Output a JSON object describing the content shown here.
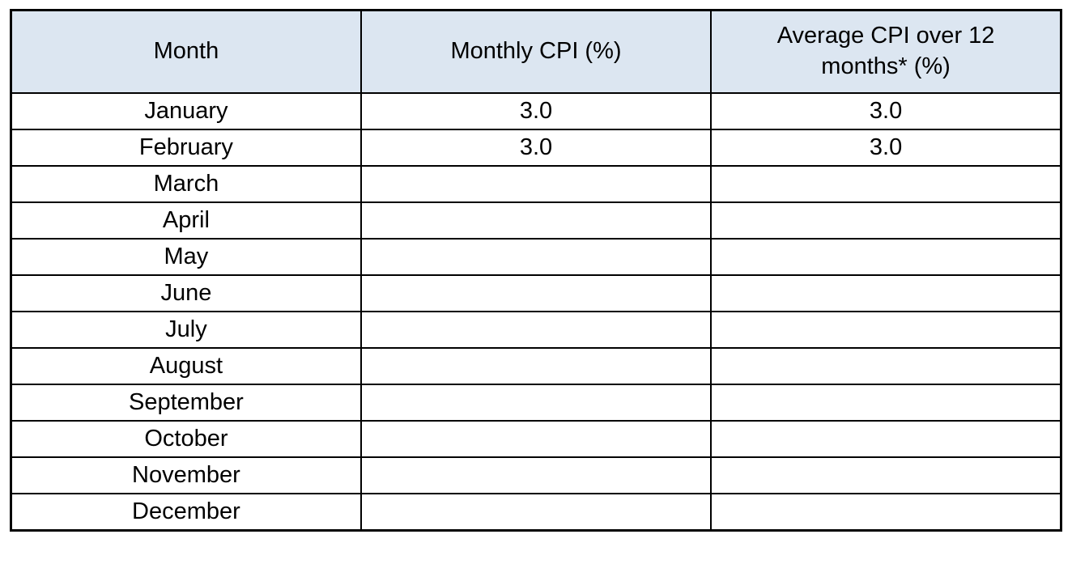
{
  "table": {
    "columns": [
      "Month",
      "Monthly CPI (%)",
      "Average CPI over 12 months* (%)"
    ],
    "rows": [
      [
        "January",
        "3.0",
        "3.0"
      ],
      [
        "February",
        "3.0",
        "3.0"
      ],
      [
        "March",
        "",
        ""
      ],
      [
        "April",
        "",
        ""
      ],
      [
        "May",
        "",
        ""
      ],
      [
        "June",
        "",
        ""
      ],
      [
        "July",
        "",
        ""
      ],
      [
        "August",
        "",
        ""
      ],
      [
        "September",
        "",
        ""
      ],
      [
        "October",
        "",
        ""
      ],
      [
        "November",
        "",
        ""
      ],
      [
        "December",
        "",
        ""
      ]
    ]
  },
  "colors": {
    "header_background": "#dce6f1",
    "border": "#000000",
    "row_background": "#ffffff",
    "text": "#000000"
  }
}
